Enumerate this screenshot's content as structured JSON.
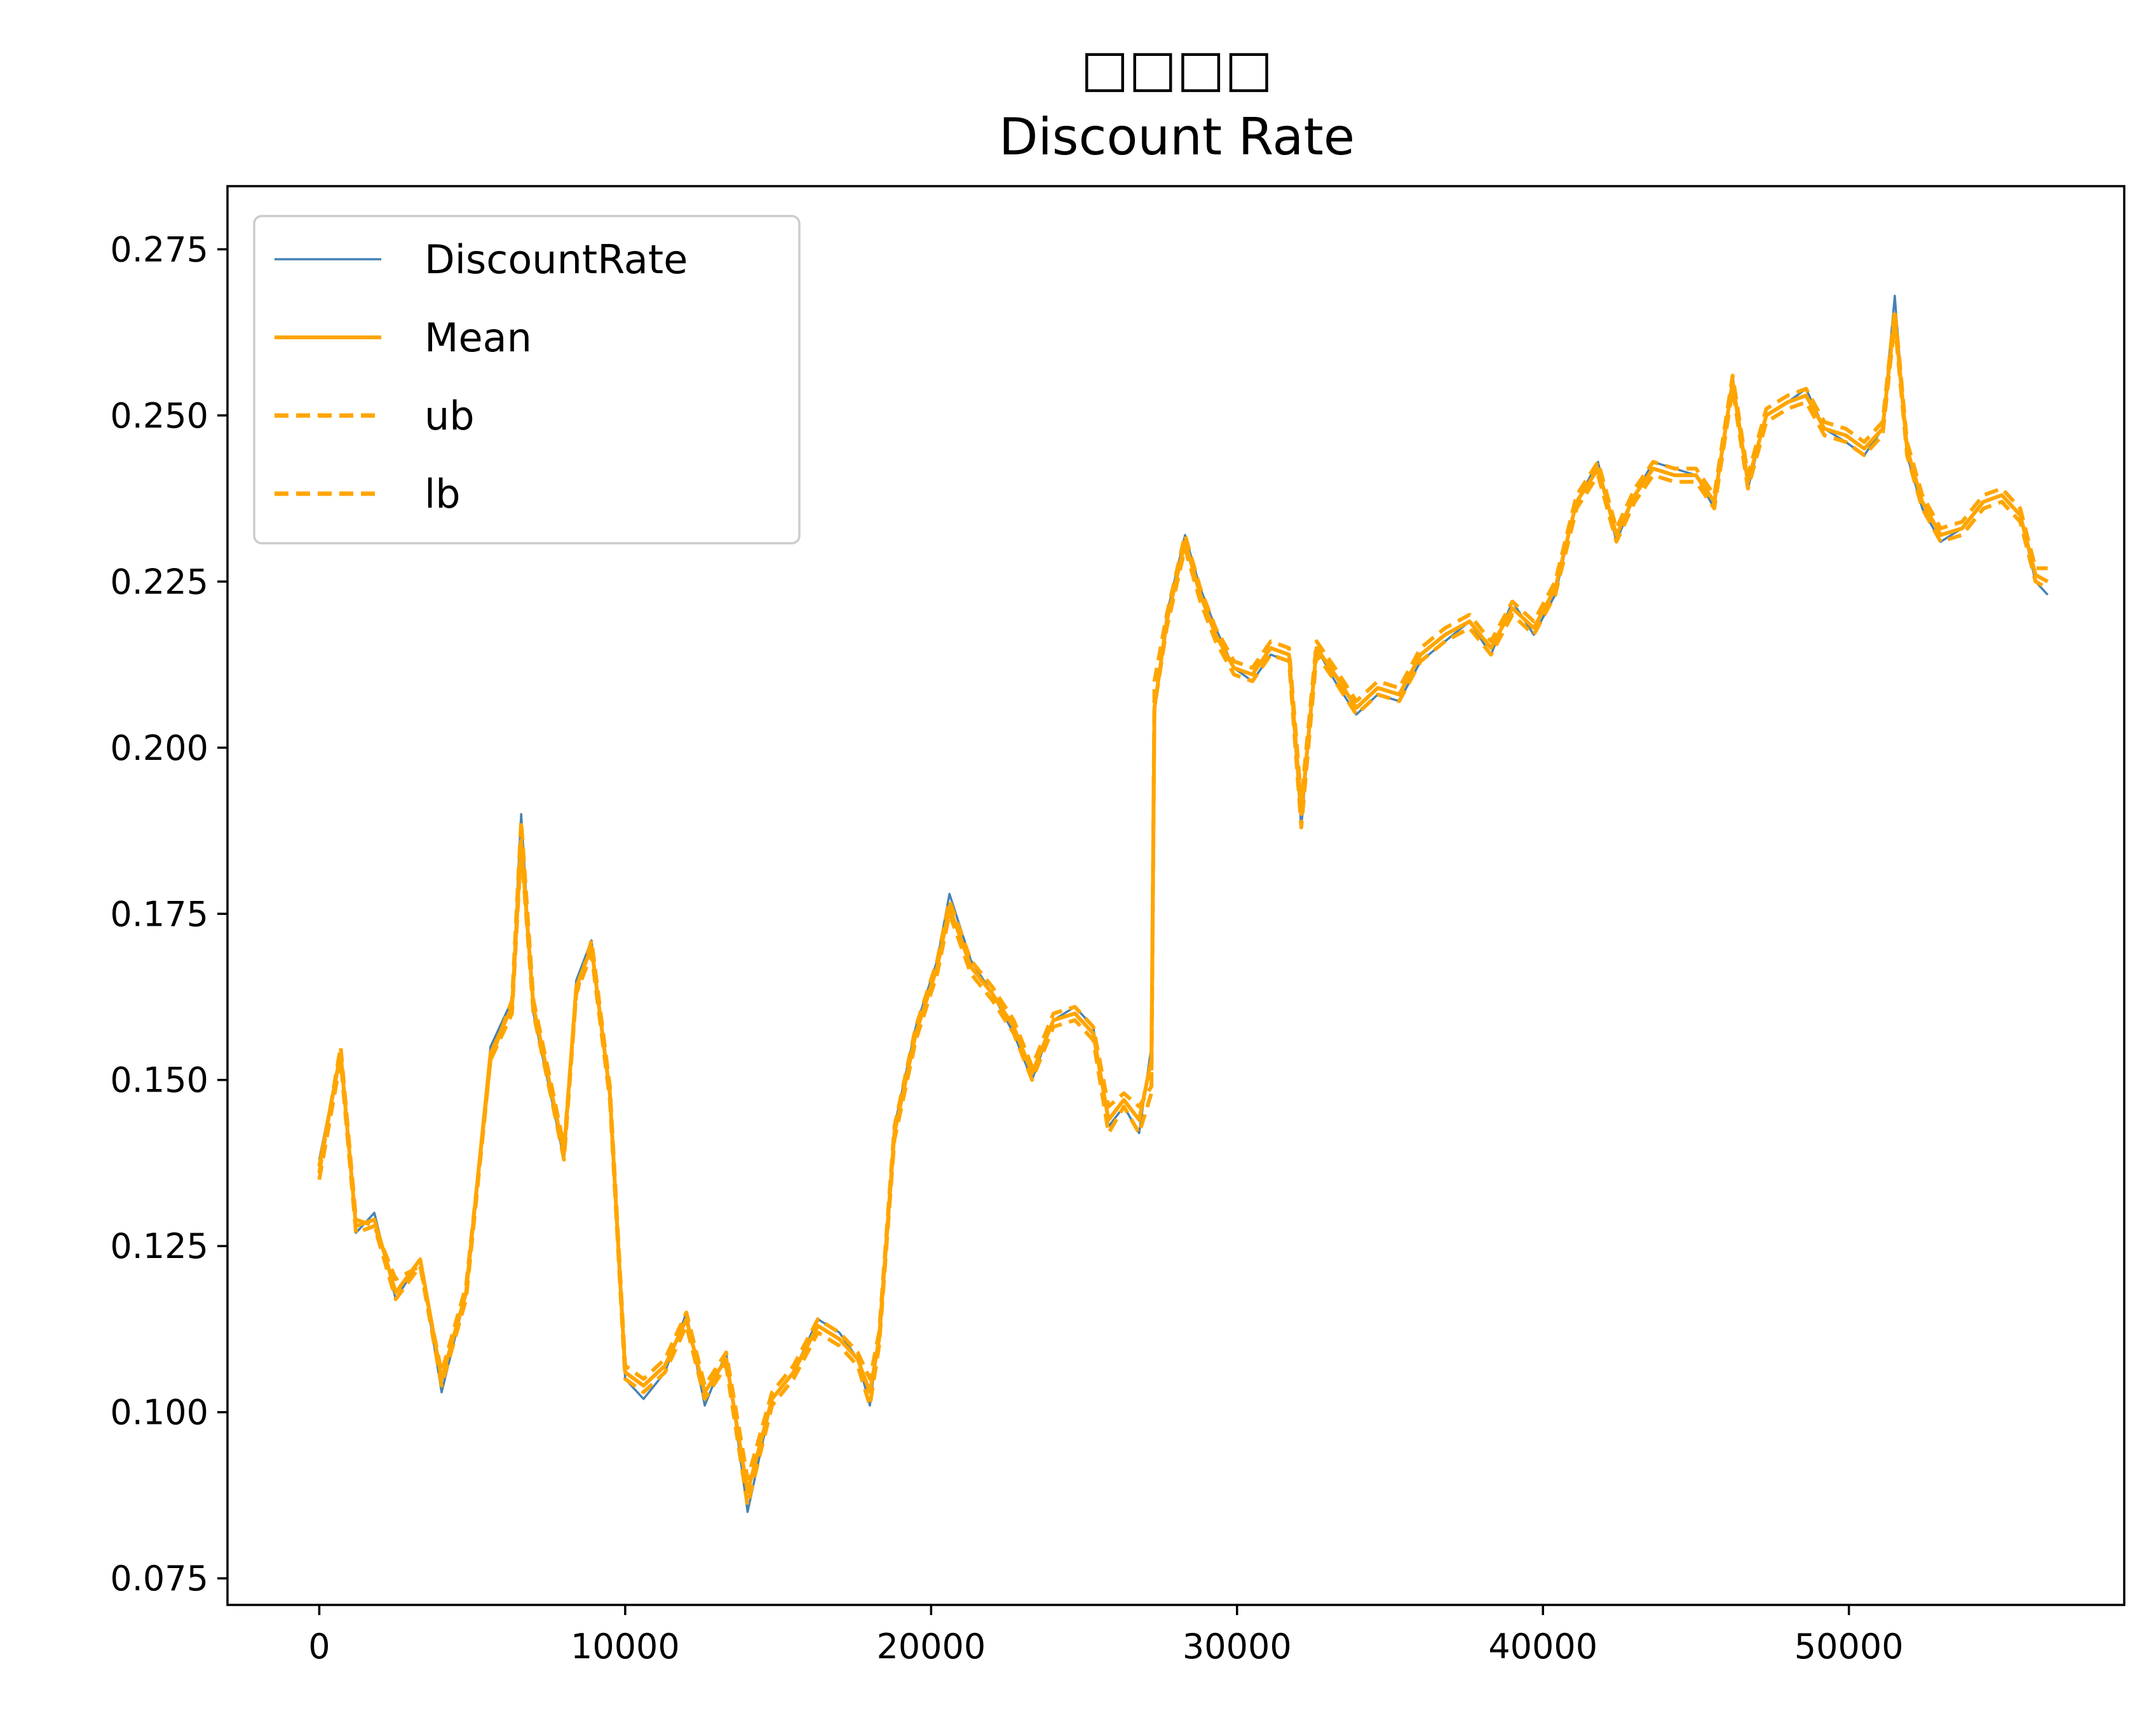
{
  "chart_data": {
    "type": "line",
    "title": "□□□□",
    "subtitle": "Discount Rate",
    "xlabel": "",
    "ylabel": "",
    "xlim": [
      -3000,
      59000
    ],
    "ylim": [
      0.071,
      0.2845
    ],
    "xticks": [
      0,
      10000,
      20000,
      30000,
      40000,
      50000
    ],
    "xtick_labels": [
      "0",
      "10000",
      "20000",
      "30000",
      "40000",
      "50000"
    ],
    "yticks": [
      0.075,
      0.1,
      0.125,
      0.15,
      0.175,
      0.2,
      0.225,
      0.25,
      0.275
    ],
    "ytick_labels": [
      "0.075",
      "0.100",
      "0.125",
      "0.150",
      "0.175",
      "0.200",
      "0.225",
      "0.250",
      "0.275"
    ],
    "grid": false,
    "legend_position": "upper-left",
    "colors": {
      "discount": "#4682b4",
      "mean": "#ffa500",
      "band": "#ffa500"
    },
    "x": [
      0,
      700,
      1200,
      1800,
      2500,
      3300,
      4000,
      4800,
      5600,
      6300,
      6600,
      7000,
      7600,
      8000,
      8400,
      8900,
      9500,
      10000,
      10600,
      11300,
      12000,
      12600,
      13300,
      14000,
      14800,
      15500,
      16300,
      17000,
      17600,
      18000,
      18300,
      18800,
      19500,
      20200,
      20600,
      21300,
      22000,
      22700,
      23300,
      24000,
      24700,
      25300,
      25800,
      26300,
      26800,
      27200,
      27300,
      27700,
      28300,
      28800,
      29300,
      29900,
      30500,
      31100,
      31700,
      32100,
      32600,
      33200,
      33900,
      34600,
      35300,
      36000,
      36800,
      37600,
      38300,
      39000,
      39700,
      40400,
      41100,
      41800,
      42400,
      43000,
      43600,
      44300,
      45000,
      45600,
      46200,
      46700,
      47300,
      48000,
      48600,
      49200,
      49900,
      50500,
      51100,
      51500,
      51900,
      52400,
      53000,
      53700,
      54400,
      55000,
      55600,
      56100,
      56500
    ],
    "series": [
      {
        "name": "DiscountRate",
        "style": "thin",
        "values": [
          0.138,
          0.154,
          0.127,
          0.13,
          0.117,
          0.123,
          0.103,
          0.118,
          0.155,
          0.162,
          0.19,
          0.16,
          0.147,
          0.138,
          0.165,
          0.171,
          0.147,
          0.105,
          0.102,
          0.106,
          0.115,
          0.101,
          0.109,
          0.085,
          0.102,
          0.106,
          0.114,
          0.112,
          0.108,
          0.101,
          0.112,
          0.143,
          0.158,
          0.168,
          0.178,
          0.168,
          0.163,
          0.157,
          0.15,
          0.159,
          0.161,
          0.158,
          0.143,
          0.146,
          0.142,
          0.155,
          0.205,
          0.22,
          0.232,
          0.224,
          0.218,
          0.212,
          0.21,
          0.214,
          0.213,
          0.188,
          0.215,
          0.21,
          0.205,
          0.208,
          0.207,
          0.213,
          0.216,
          0.219,
          0.214,
          0.222,
          0.217,
          0.223,
          0.237,
          0.243,
          0.231,
          0.238,
          0.243,
          0.242,
          0.241,
          0.236,
          0.256,
          0.239,
          0.25,
          0.252,
          0.254,
          0.248,
          0.246,
          0.244,
          0.248,
          0.268,
          0.244,
          0.236,
          0.231,
          0.233,
          0.237,
          0.238,
          0.235,
          0.225,
          0.223
        ]
      },
      {
        "name": "Mean",
        "style": "solid",
        "values": [
          0.137,
          0.154,
          0.128,
          0.129,
          0.118,
          0.123,
          0.105,
          0.118,
          0.154,
          0.161,
          0.186,
          0.161,
          0.148,
          0.139,
          0.164,
          0.17,
          0.148,
          0.106,
          0.104,
          0.107,
          0.114,
          0.103,
          0.108,
          0.088,
          0.102,
          0.106,
          0.113,
          0.111,
          0.108,
          0.103,
          0.111,
          0.142,
          0.157,
          0.167,
          0.176,
          0.167,
          0.163,
          0.158,
          0.151,
          0.159,
          0.16,
          0.157,
          0.144,
          0.147,
          0.144,
          0.153,
          0.206,
          0.219,
          0.231,
          0.223,
          0.217,
          0.212,
          0.211,
          0.215,
          0.214,
          0.19,
          0.215,
          0.211,
          0.206,
          0.209,
          0.208,
          0.214,
          0.217,
          0.219,
          0.215,
          0.221,
          0.218,
          0.224,
          0.237,
          0.242,
          0.232,
          0.238,
          0.242,
          0.241,
          0.241,
          0.237,
          0.255,
          0.24,
          0.25,
          0.252,
          0.253,
          0.248,
          0.247,
          0.245,
          0.248,
          0.265,
          0.245,
          0.237,
          0.232,
          0.233,
          0.237,
          0.238,
          0.235,
          0.226,
          0.225
        ]
      },
      {
        "name": "ub",
        "style": "dashed",
        "values": [
          0.136,
          0.155,
          0.129,
          0.128,
          0.12,
          0.122,
          0.106,
          0.119,
          0.153,
          0.162,
          0.189,
          0.162,
          0.149,
          0.14,
          0.163,
          0.171,
          0.149,
          0.107,
          0.105,
          0.108,
          0.115,
          0.104,
          0.109,
          0.09,
          0.103,
          0.107,
          0.114,
          0.112,
          0.109,
          0.105,
          0.112,
          0.143,
          0.158,
          0.168,
          0.177,
          0.168,
          0.164,
          0.159,
          0.152,
          0.16,
          0.161,
          0.158,
          0.146,
          0.148,
          0.146,
          0.149,
          0.21,
          0.22,
          0.232,
          0.224,
          0.218,
          0.213,
          0.212,
          0.216,
          0.215,
          0.192,
          0.216,
          0.212,
          0.207,
          0.21,
          0.209,
          0.215,
          0.218,
          0.22,
          0.216,
          0.222,
          0.219,
          0.225,
          0.238,
          0.243,
          0.233,
          0.239,
          0.243,
          0.242,
          0.242,
          0.238,
          0.256,
          0.241,
          0.251,
          0.253,
          0.254,
          0.249,
          0.248,
          0.246,
          0.249,
          0.266,
          0.246,
          0.238,
          0.233,
          0.234,
          0.238,
          0.239,
          0.236,
          0.227,
          0.227
        ]
      },
      {
        "name": "lb",
        "style": "dashed",
        "values": [
          0.135,
          0.153,
          0.127,
          0.128,
          0.117,
          0.122,
          0.104,
          0.117,
          0.153,
          0.16,
          0.185,
          0.16,
          0.147,
          0.138,
          0.163,
          0.169,
          0.147,
          0.105,
          0.103,
          0.106,
          0.113,
          0.102,
          0.107,
          0.086,
          0.101,
          0.105,
          0.112,
          0.11,
          0.107,
          0.101,
          0.11,
          0.141,
          0.156,
          0.166,
          0.175,
          0.166,
          0.162,
          0.157,
          0.15,
          0.158,
          0.159,
          0.156,
          0.142,
          0.146,
          0.142,
          0.148,
          0.206,
          0.218,
          0.23,
          0.222,
          0.216,
          0.211,
          0.21,
          0.214,
          0.213,
          0.188,
          0.214,
          0.21,
          0.205,
          0.208,
          0.207,
          0.213,
          0.216,
          0.218,
          0.214,
          0.22,
          0.217,
          0.223,
          0.236,
          0.241,
          0.231,
          0.237,
          0.241,
          0.24,
          0.24,
          0.236,
          0.254,
          0.239,
          0.249,
          0.251,
          0.252,
          0.247,
          0.246,
          0.244,
          0.247,
          0.264,
          0.244,
          0.236,
          0.231,
          0.232,
          0.236,
          0.237,
          0.234,
          0.225,
          0.224
        ]
      }
    ]
  }
}
